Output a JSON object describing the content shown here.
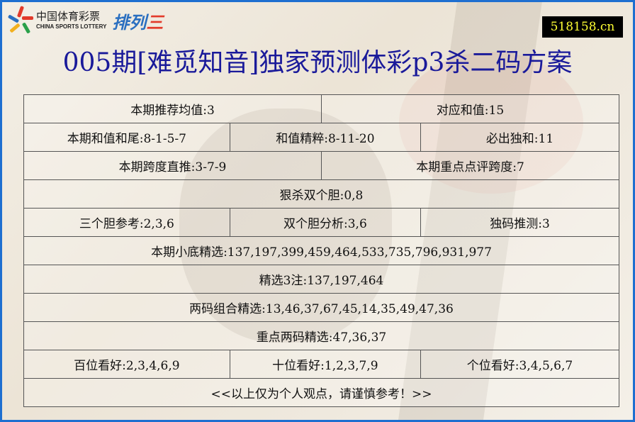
{
  "logo": {
    "cn": "中国体育彩票",
    "en": "CHINA SPORTS LOTTERY",
    "product_a": "排列",
    "product_b": "三"
  },
  "site": "518158.cn",
  "title": "005期[难觅知音]独家预测体彩p3杀二码方案",
  "rows": [
    [
      "本期推荐均值:3",
      "对应和值:15"
    ],
    [
      "本期和值和尾:8-1-5-7",
      "和值精粹:8-11-20",
      "必出独和:11"
    ],
    [
      "本期跨度直推:3-7-9",
      "本期重点点评跨度:7"
    ],
    [
      "狠杀双个胆:0,8"
    ],
    [
      "三个胆参考:2,3,6",
      "双个胆分析:3,6",
      "独码推测:3"
    ],
    [
      "本期小底精选:137,197,399,459,464,533,735,796,931,977"
    ],
    [
      "精选3注:137,197,464"
    ],
    [
      "两码组合精选:13,46,37,67,45,14,35,49,47,36"
    ],
    [
      "重点两码精选:47,36,37"
    ],
    [
      "百位看好:2,3,4,6,9",
      "十位看好:1,2,3,7,9",
      "个位看好:3,4,5,6,7"
    ],
    [
      "<<以上仅为个人观点，请谨慎参考！>>"
    ]
  ],
  "colors": {
    "border": "#1e6fd0",
    "title": "#1a1a9a",
    "site_bg": "#000000",
    "site_fg": "#ffff33"
  }
}
